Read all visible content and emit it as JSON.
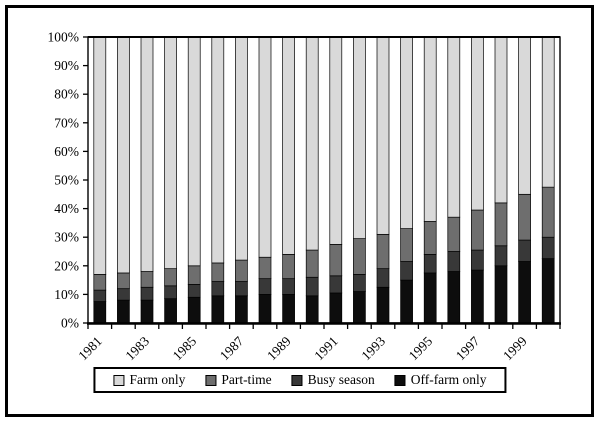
{
  "chart_data": {
    "type": "bar",
    "subtype": "100%-stacked-vertical",
    "title": "",
    "xlabel": "",
    "ylabel": "",
    "ylim": [
      0,
      100
    ],
    "grid": false,
    "years": [
      1981,
      1982,
      1983,
      1984,
      1985,
      1986,
      1987,
      1988,
      1989,
      1990,
      1991,
      1992,
      1993,
      1994,
      1995,
      1996,
      1997,
      1998,
      1999,
      2000
    ],
    "x_tick_labels": [
      "1981",
      "1983",
      "1985",
      "1987",
      "1989",
      "1991",
      "1993",
      "1995",
      "1997",
      "1999"
    ],
    "y_tick_labels": [
      "0%",
      "10%",
      "20%",
      "30%",
      "40%",
      "50%",
      "60%",
      "70%",
      "80%",
      "90%",
      "100%"
    ],
    "stack_order_bottom_to_top": [
      "Off-farm only",
      "Busy season",
      "Part-time",
      "Farm only"
    ],
    "series": [
      {
        "name": "Farm only",
        "color": "#d9d9d9",
        "values": [
          83.0,
          82.5,
          82.0,
          81.0,
          80.0,
          79.0,
          78.0,
          77.0,
          76.0,
          74.5,
          72.5,
          70.5,
          69.0,
          67.0,
          64.5,
          63.0,
          60.5,
          58.0,
          55.0,
          52.5
        ]
      },
      {
        "name": "Part-time",
        "color": "#6e6e6e",
        "values": [
          5.5,
          5.5,
          5.5,
          6.0,
          6.5,
          6.5,
          7.5,
          7.5,
          8.5,
          9.5,
          11.0,
          12.5,
          12.0,
          11.5,
          11.5,
          12.0,
          14.0,
          15.0,
          16.0,
          17.5
        ]
      },
      {
        "name": "Busy season",
        "color": "#383838",
        "values": [
          4.0,
          4.0,
          4.5,
          4.5,
          4.5,
          5.0,
          5.0,
          5.5,
          5.5,
          6.5,
          6.0,
          6.0,
          6.5,
          6.5,
          6.5,
          7.0,
          7.0,
          7.0,
          7.5,
          7.5
        ]
      },
      {
        "name": "Off-farm only",
        "color": "#0d0d0d",
        "values": [
          7.5,
          8.0,
          8.0,
          8.5,
          9.0,
          9.5,
          9.5,
          10.0,
          10.0,
          9.5,
          10.5,
          11.0,
          12.5,
          15.0,
          17.5,
          18.0,
          18.5,
          20.0,
          21.5,
          22.5
        ]
      }
    ],
    "legend": {
      "position": "bottom",
      "items": [
        "Farm only",
        "Part-time",
        "Busy season",
        "Off-farm only"
      ]
    }
  }
}
